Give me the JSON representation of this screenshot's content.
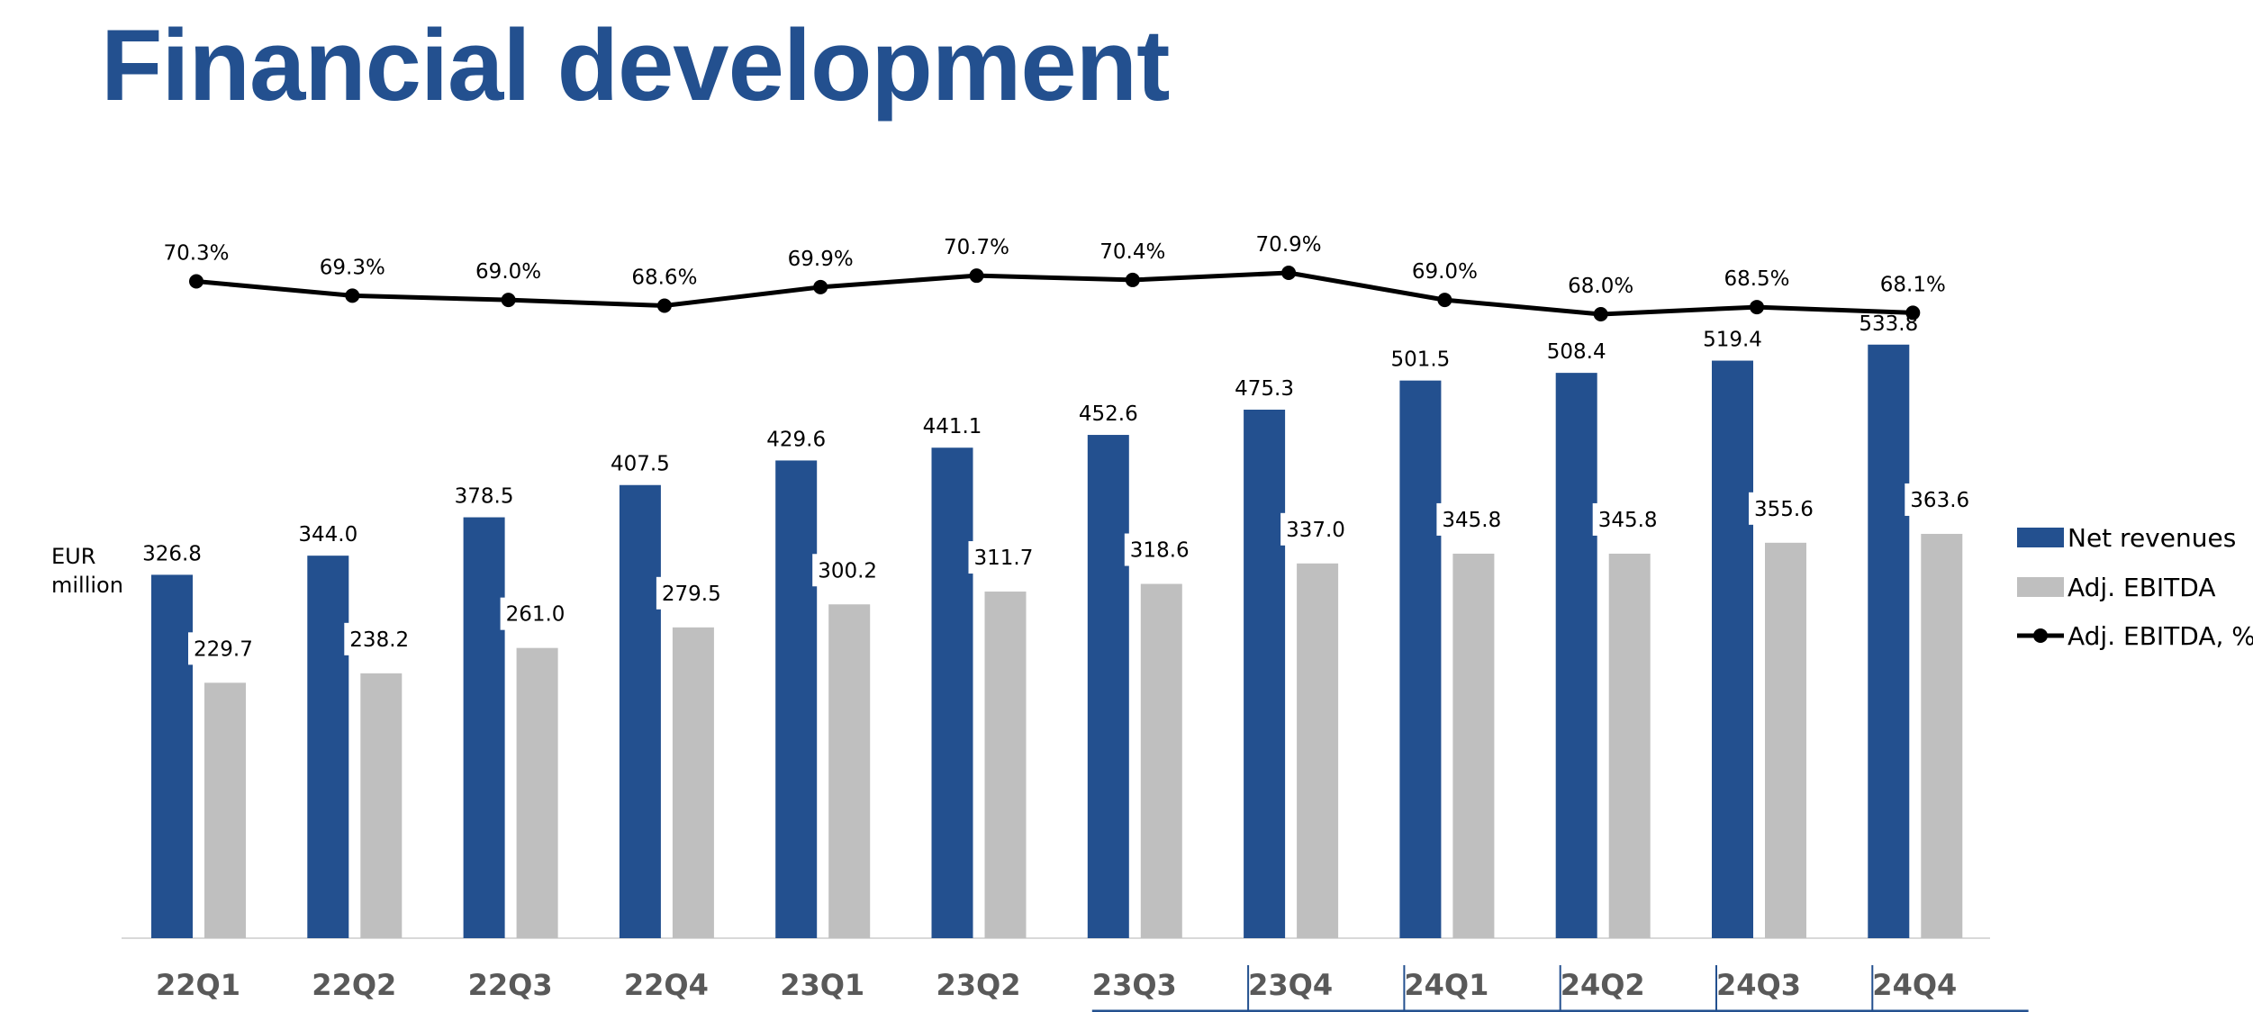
{
  "title": "Financial development",
  "chart_data": {
    "type": "bar",
    "unit_label": [
      "EUR",
      "million"
    ],
    "categories": [
      "22Q1",
      "22Q2",
      "22Q3",
      "22Q4",
      "23Q1",
      "23Q2",
      "23Q3",
      "23Q4",
      "24Q1",
      "24Q2",
      "24Q3",
      "24Q4"
    ],
    "series": [
      {
        "name": "Net revenues",
        "color": "#23508f",
        "values": [
          326.8,
          344.0,
          378.5,
          407.5,
          429.6,
          441.1,
          452.6,
          475.3,
          501.5,
          508.4,
          519.4,
          533.8
        ],
        "labels": [
          "326.8",
          "344.0",
          "378.5",
          "407.5",
          "429.6",
          "441.1",
          "452.6",
          "475.3",
          "501.5",
          "508.4",
          "519.4",
          "533.8"
        ]
      },
      {
        "name": "Adj. EBITDA",
        "color": "#bfbfbf",
        "values": [
          229.7,
          238.2,
          261.0,
          279.5,
          300.2,
          311.7,
          318.6,
          337.0,
          345.8,
          345.8,
          355.6,
          363.6
        ],
        "labels": [
          "229.7",
          "238.2",
          "261.0",
          "279.5",
          "300.2",
          "311.7",
          "318.6",
          "337.0",
          "345.8",
          "345.8",
          "355.6",
          "363.6"
        ]
      }
    ],
    "line_series": {
      "name": "Adj. EBITDA, %",
      "color": "#000000",
      "values": [
        70.3,
        69.3,
        69.0,
        68.6,
        69.9,
        70.7,
        70.4,
        70.9,
        69.0,
        68.0,
        68.5,
        68.1
      ],
      "labels": [
        "70.3%",
        "69.3%",
        "69.0%",
        "68.6%",
        "69.9%",
        "70.7%",
        "70.4%",
        "70.9%",
        "69.0%",
        "68.0%",
        "68.5%",
        "68.1%"
      ]
    },
    "ylim": [
      0,
      580
    ],
    "line_ylim": [
      68.0,
      70.9
    ],
    "highlighted_categories": [
      "23Q3",
      "23Q4",
      "24Q1",
      "24Q2",
      "24Q3",
      "24Q4"
    ],
    "accent_color": "#23508f",
    "legend_position": "right"
  }
}
